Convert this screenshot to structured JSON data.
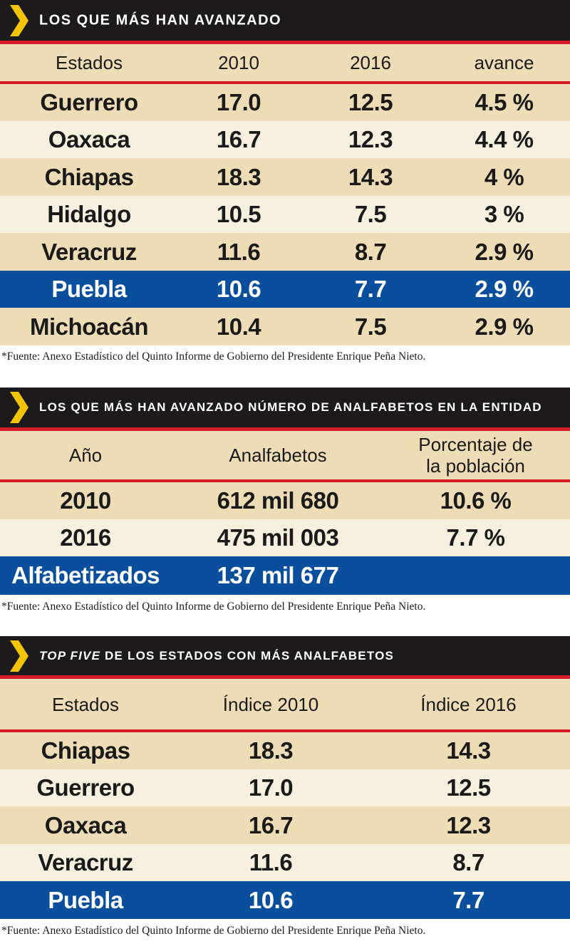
{
  "colors": {
    "header_bg": "#1c1a1b",
    "accent_red": "#d51b25",
    "chevron_yellow": "#f5c400",
    "row_dark": "#eddcb6",
    "row_light": "#f7f0de",
    "highlight_blue": "#0a4f9e"
  },
  "icons": {
    "section_marker": "chevron-right-icon"
  },
  "table1": {
    "title": "LOS QUE MÁS HAN AVANZADO",
    "headers": [
      "Estados",
      "2010",
      "2016",
      "avance"
    ],
    "rows": [
      [
        "Guerrero",
        "17.0",
        "12.5",
        "4.5 %"
      ],
      [
        "Oaxaca",
        "16.7",
        "12.3",
        "4.4 %"
      ],
      [
        "Chiapas",
        "18.3",
        "14.3",
        "4 %"
      ],
      [
        "Hidalgo",
        "10.5",
        "7.5",
        "3 %"
      ],
      [
        "Veracruz",
        "11.6",
        "8.7",
        "2.9 %"
      ],
      [
        "Puebla",
        "10.6",
        "7.7",
        "2.9 %"
      ],
      [
        "Michoacán",
        "10.4",
        "7.5",
        "2.9 %"
      ]
    ],
    "highlighted_row": "Puebla",
    "source": "*Fuente: Anexo Estadístico del Quinto Informe de Gobierno del Presidente Enrique Peña Nieto."
  },
  "table2": {
    "title": "LOS QUE MÁS HAN AVANZADO NÚMERO DE ANALFABETOS EN LA ENTIDAD",
    "headers": [
      "Año",
      "Analfabetos",
      "Porcentaje de",
      "la población"
    ],
    "rows": [
      [
        "2010",
        "612 mil 680",
        "10.6 %"
      ],
      [
        "2016",
        "475 mil 003",
        "7.7 %"
      ],
      [
        "Alfabetizados",
        "137 mil 677",
        ""
      ]
    ],
    "highlighted_row": "Alfabetizados",
    "source": "*Fuente: Anexo Estadístico del Quinto Informe de Gobierno del Presidente Enrique Peña Nieto."
  },
  "table3": {
    "title_italic": "TOP FIVE",
    "title_rest": " DE LOS ESTADOS CON MÁS ANALFABETOS",
    "headers": [
      "Estados",
      "Índice 2010",
      "Índice 2016"
    ],
    "rows": [
      [
        "Chiapas",
        "18.3",
        "14.3"
      ],
      [
        "Guerrero",
        "17.0",
        "12.5"
      ],
      [
        "Oaxaca",
        "16.7",
        "12.3"
      ],
      [
        "Veracruz",
        "11.6",
        "8.7"
      ],
      [
        "Puebla",
        "10.6",
        "7.7"
      ]
    ],
    "highlighted_row": "Puebla",
    "source": "*Fuente: Anexo Estadístico del Quinto Informe de Gobierno del Presidente Enrique Peña Nieto."
  }
}
